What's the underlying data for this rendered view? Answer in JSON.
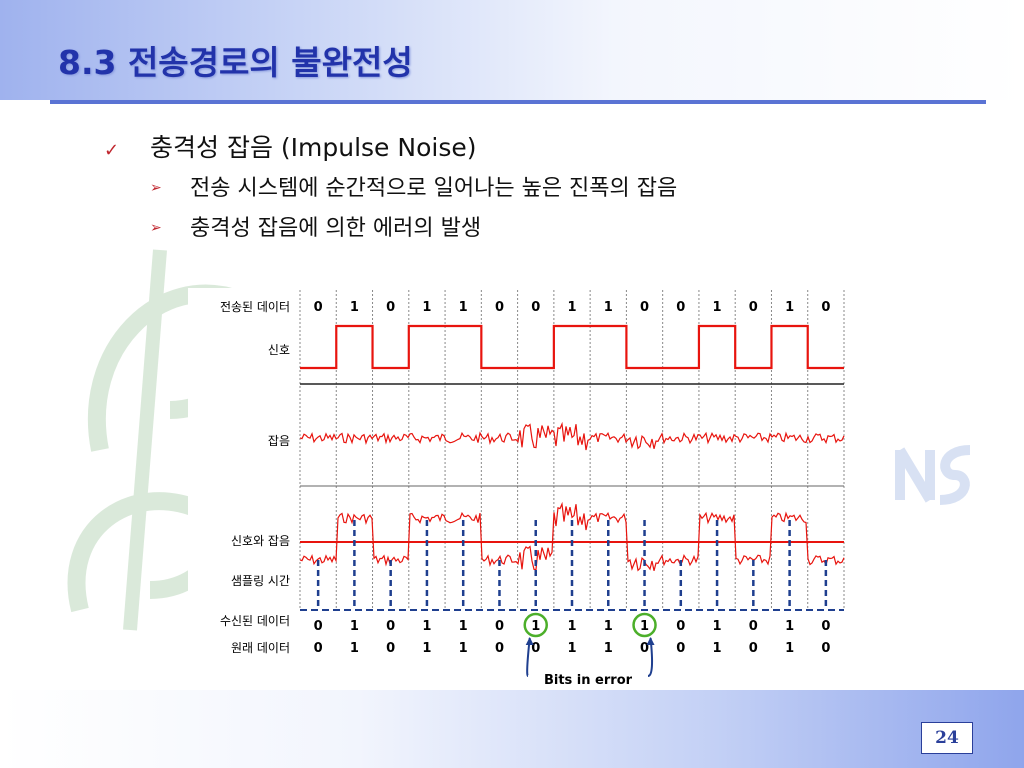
{
  "slide": {
    "title": "8.3 전송경로의 불완전성",
    "bullet": "충격성 잡음 (Impulse Noise)",
    "subbullets": [
      "전송 시스템에 순간적으로 일어나는 높은 진폭의 잡음",
      "충격성 잡음에 의한 에러의 발생"
    ],
    "page_number": "24"
  },
  "diagram": {
    "row_labels": {
      "transmitted": "전송된 데이터",
      "signal": "신호",
      "noise": "잡음",
      "signal_noise": "신호와 잡음",
      "sampling": "샘플링 시간",
      "received": "수신된 데이터",
      "original": "원래 데이터"
    },
    "transmitted_bits": [
      0,
      1,
      0,
      1,
      1,
      0,
      0,
      1,
      1,
      0,
      0,
      1,
      0,
      1,
      0
    ],
    "received_bits": [
      0,
      1,
      0,
      1,
      1,
      0,
      1,
      1,
      1,
      1,
      0,
      1,
      0,
      1,
      0
    ],
    "original_bits": [
      0,
      1,
      0,
      1,
      1,
      0,
      0,
      1,
      1,
      0,
      0,
      1,
      0,
      1,
      0
    ],
    "error_positions": [
      6,
      9
    ],
    "error_label": "Bits in error"
  },
  "colors": {
    "title": "#2233aa",
    "signal": "#e8140e",
    "sampling": "#1f3f8f",
    "error_circle": "#4caf2a",
    "bullet_marker": "#c0262e"
  }
}
